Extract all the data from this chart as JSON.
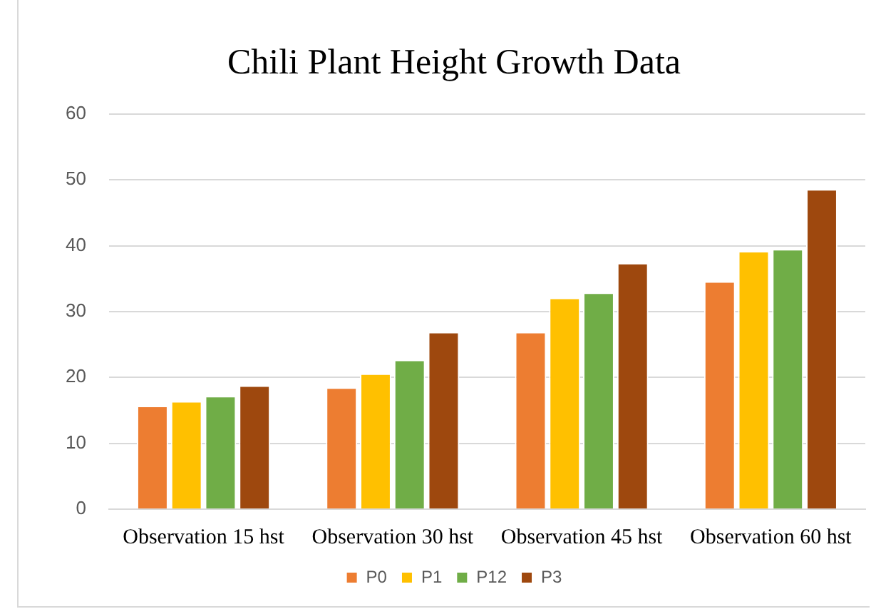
{
  "chart_data": {
    "type": "bar",
    "title": "Chili Plant Height Growth Data",
    "categories": [
      "Observation 15 hst",
      "Observation 30 hst",
      "Observation 45 hst",
      "Observation 60 hst"
    ],
    "series": [
      {
        "name": "P0",
        "color": "#ed7d31",
        "values": [
          15.7,
          18.5,
          26.9,
          34.6
        ]
      },
      {
        "name": "P1",
        "color": "#ffc000",
        "values": [
          16.4,
          20.6,
          32.1,
          39.2
        ]
      },
      {
        "name": "P12",
        "color": "#70ad47",
        "values": [
          17.2,
          22.7,
          32.9,
          39.5
        ]
      },
      {
        "name": "P3",
        "color": "#9e480e",
        "values": [
          18.8,
          26.9,
          37.4,
          48.6
        ]
      }
    ],
    "ylim": [
      0,
      60
    ],
    "yticks": [
      0,
      10,
      20,
      30,
      40,
      50,
      60
    ],
    "grid": "y",
    "legend": "bottom"
  }
}
